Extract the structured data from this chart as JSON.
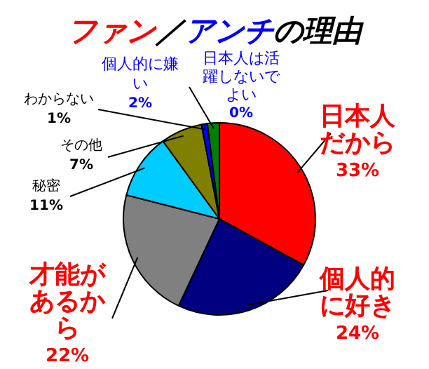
{
  "chart_data": {
    "type": "pie",
    "title": "ファン／アンチの理由",
    "categories": [
      "日本人だから",
      "個人的に好き",
      "才能があるから",
      "秘密",
      "その他",
      "わからない",
      "個人的に嫌い",
      "日本人は活躍しないでよい"
    ],
    "values": [
      33,
      24,
      22,
      11,
      7,
      1,
      2,
      0
    ],
    "value_labels": [
      "33%",
      "24%",
      "22%",
      "11%",
      "7%",
      "1%",
      "2%",
      "0%"
    ],
    "colors": [
      "#ff0000",
      "#000080",
      "#808080",
      "#00ccff",
      "#808000",
      "#0000ff",
      "#008000",
      "#ff00ff"
    ],
    "legend": false
  }
}
